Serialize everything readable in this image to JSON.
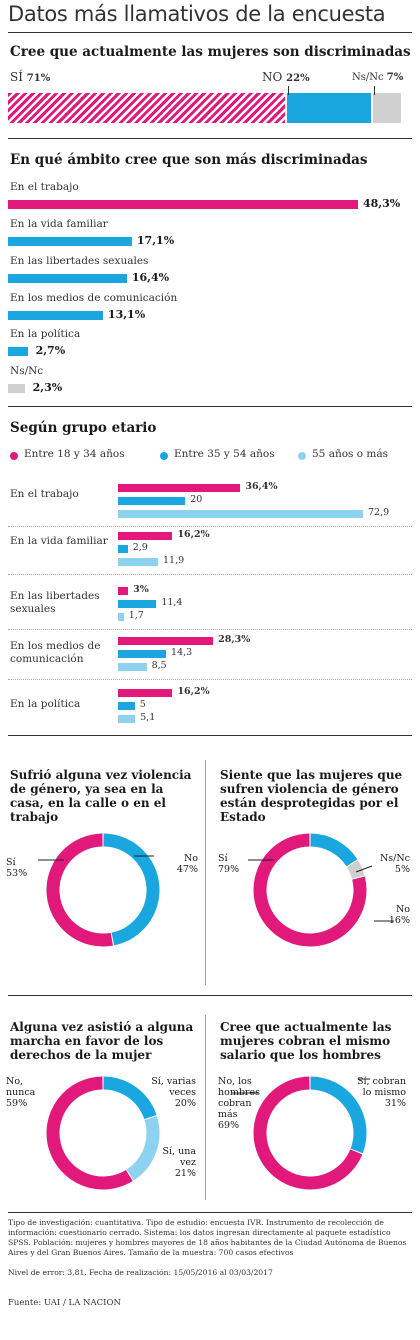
{
  "title": "Datos más llamativos de la encuesta",
  "section1": {
    "title": "Cree que actualmente las mujeres son discriminadas",
    "yes_label": "SÍ",
    "yes_value": "71%",
    "no_label": "NO",
    "no_value": "22%",
    "nsnc_label": "Ns/Nc",
    "nsnc_value": "7%"
  },
  "section2": {
    "title": "En qué ámbito cree que son más discriminadas",
    "items": [
      {
        "label": "En el trabajo",
        "value": "48,3%"
      },
      {
        "label": "En la vida familiar",
        "value": "17,1%"
      },
      {
        "label": "En las libertades sexuales",
        "value": "16,4%"
      },
      {
        "label": "En los medios de comunicación",
        "value": "13,1%"
      },
      {
        "label": "En la política",
        "value": "2,7%"
      },
      {
        "label": "Ns/Nc",
        "value": "2,3%"
      }
    ]
  },
  "section3": {
    "title": "Según grupo etario",
    "legend": [
      "Entre 18 y 34 años",
      "Entre 35 y 54 años",
      "55 años o más"
    ],
    "groups": [
      {
        "label": "En el trabajo",
        "values": [
          "36,4%",
          "20",
          "72,9"
        ]
      },
      {
        "label": "En la vida familiar",
        "values": [
          "16,2%",
          "2,9",
          "11,9"
        ]
      },
      {
        "label": "En las libertades sexuales",
        "values": [
          "3%",
          "11,4",
          "1,7"
        ]
      },
      {
        "label": "En los medios de comunicación",
        "values": [
          "28,3%",
          "14,3",
          "8,5"
        ]
      },
      {
        "label": "En la política",
        "values": [
          "16,2%",
          "5",
          "5,1"
        ]
      }
    ]
  },
  "donuts": [
    {
      "title": "Sufrió alguna vez violencia de género, ya sea en la casa, en la calle o en el trabajo",
      "labels": [
        {
          "text": "Sí",
          "value": "53%"
        },
        {
          "text": "No",
          "value": "47%"
        }
      ]
    },
    {
      "title": "Siente que las mujeres que sufren violencia de género están desprotegidas por el Estado",
      "labels": [
        {
          "text": "Sí",
          "value": "79%"
        },
        {
          "text": "Ns/Nc",
          "value": "5%"
        },
        {
          "text": "No",
          "value": "16%"
        }
      ]
    },
    {
      "title": "Alguna vez asistió a alguna marcha en favor de los derechos de la mujer",
      "labels": [
        {
          "text": "No, nunca",
          "value": "59%"
        },
        {
          "text": "Sí, varias veces",
          "value": "20%"
        },
        {
          "text": "Sí, una vez",
          "value": "21%"
        }
      ]
    },
    {
      "title": "Cree que actualmente las mujeres cobran el mismo salario que los hombres",
      "labels": [
        {
          "text": "No, los hombres cobran más",
          "value": "69%"
        },
        {
          "text": "Sí, cobran lo mismo",
          "value": "31%"
        }
      ]
    }
  ],
  "footer": {
    "method": "Tipo de investigación: cuantitativa. Tipo de estudio: encuesta IVR. Instrumento de recolección de información: cuestionario cerrado. Sistema: los datos ingresan directamente al paquete estadístico SPSS. Población: mujeres y hombres mayores de 18 años habitantes de la Ciudad Autónoma de Buenos Aires y del Gran Buenos Aires. Tamaño de la muestra: 700 casos efectivos",
    "error": "Nivel de error: 3,81. Fecha de realización: 15/05/2016 al 03/03/2017",
    "source": "Fuente: UAI / LA NACION"
  },
  "colors": {
    "pink": "#e0197b",
    "blue": "#1aa7df",
    "light_blue": "#8dd3ef",
    "grey": "#cfcfcf"
  },
  "chart_data": [
    {
      "type": "bar",
      "title": "Cree que actualmente las mujeres son discriminadas",
      "categories": [
        "SÍ",
        "NO",
        "Ns/Nc"
      ],
      "values": [
        71,
        22,
        7
      ]
    },
    {
      "type": "bar",
      "title": "En qué ámbito cree que son más discriminadas",
      "categories": [
        "En el trabajo",
        "En la vida familiar",
        "En las libertades sexuales",
        "En los medios de comunicación",
        "En la política",
        "Ns/Nc"
      ],
      "values": [
        48.3,
        17.1,
        16.4,
        13.1,
        2.7,
        2.3
      ]
    },
    {
      "type": "bar",
      "title": "Según grupo etario",
      "categories": [
        "En el trabajo",
        "En la vida familiar",
        "En las libertades sexuales",
        "En los medios de comunicación",
        "En la política"
      ],
      "series": [
        {
          "name": "Entre 18 y 34 años",
          "values": [
            36.4,
            16.2,
            3,
            28.3,
            16.2
          ]
        },
        {
          "name": "Entre 35 y 54 años",
          "values": [
            20,
            2.9,
            11.4,
            14.3,
            5
          ]
        },
        {
          "name": "55 años o más",
          "values": [
            72.9,
            11.9,
            1.7,
            8.5,
            5.1
          ]
        }
      ]
    },
    {
      "type": "pie",
      "title": "Sufrió alguna vez violencia de género, ya sea en la casa, en la calle o en el trabajo",
      "categories": [
        "Sí",
        "No"
      ],
      "values": [
        53,
        47
      ]
    },
    {
      "type": "pie",
      "title": "Siente que las mujeres que sufren violencia de género están desprotegidas por el Estado",
      "categories": [
        "Sí",
        "No",
        "Ns/Nc"
      ],
      "values": [
        79,
        16,
        5
      ]
    },
    {
      "type": "pie",
      "title": "Alguna vez asistió a alguna marcha en favor de los derechos de la mujer",
      "categories": [
        "No, nunca",
        "Sí, varias veces",
        "Sí, una vez"
      ],
      "values": [
        59,
        20,
        21
      ]
    },
    {
      "type": "pie",
      "title": "Cree que actualmente las mujeres cobran el mismo salario que los hombres",
      "categories": [
        "No, los hombres cobran más",
        "Sí, cobran lo mismo"
      ],
      "values": [
        69,
        31
      ]
    }
  ]
}
